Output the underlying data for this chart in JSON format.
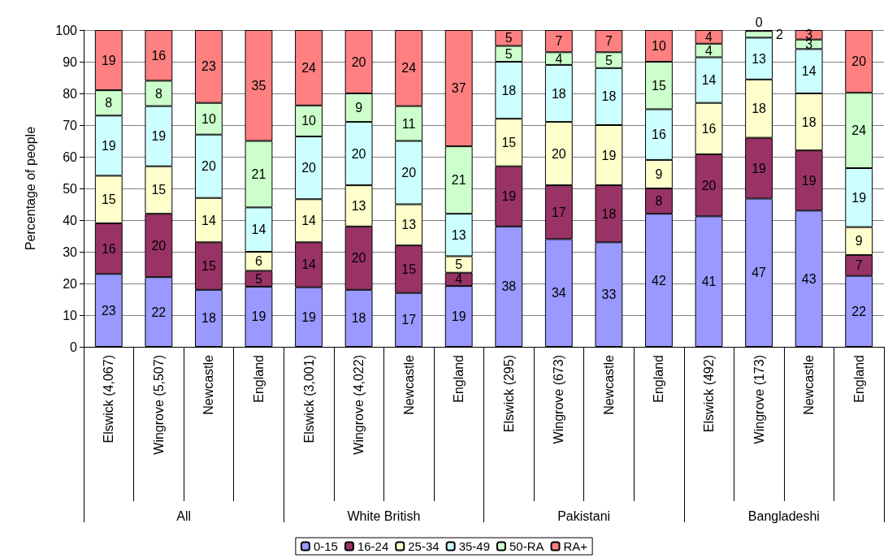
{
  "chart_data": {
    "type": "bar",
    "stacked": true,
    "ylabel": "Percentage of people",
    "categories": [
      "Elswick (4,067)",
      "Wingrove (5,507)",
      "Newcastle",
      "England",
      "Elswick (3,001)",
      "Wingrove (4,022)",
      "Newcastle",
      "England",
      "Elswick (295)",
      "Wingrove (673)",
      "Newcastle",
      "England",
      "Elswick (492)",
      "Wingrove (173)",
      "Newcastle",
      "England"
    ],
    "annotations": [
      "All",
      "White British",
      "Pakistani",
      "Bangladeshi"
    ],
    "series": [
      {
        "name": "0-15",
        "color": "#9999ff",
        "values": [
          23,
          22,
          18,
          19,
          18.8,
          18,
          17,
          19.2,
          38,
          34,
          33,
          42,
          41.2,
          46.8,
          43,
          22.4
        ],
        "value_labels": [
          "23",
          "22",
          "18",
          "19",
          "19",
          "18",
          "17",
          "19",
          "38",
          "34",
          "33",
          "42",
          "41",
          "47",
          "43",
          "22"
        ]
      },
      {
        "name": "16-24",
        "color": "#993366",
        "values": [
          16,
          20,
          15,
          5,
          14.2,
          20,
          15,
          4.2,
          19,
          17,
          18,
          8,
          19.6,
          19.2,
          19,
          6.6
        ],
        "value_labels": [
          "16",
          "20",
          "15",
          "5",
          "14",
          "20",
          "15",
          "4",
          "19",
          "17",
          "18",
          "8",
          "20",
          "19",
          "19",
          "7"
        ]
      },
      {
        "name": "25-34",
        "color": "#ffffcc",
        "values": [
          15,
          15,
          14,
          6,
          13.6,
          13,
          13,
          5.2,
          15,
          20,
          19,
          9,
          16.2,
          18.4,
          18,
          8.8
        ],
        "value_labels": [
          "15",
          "15",
          "14",
          "6",
          "14",
          "13",
          "13",
          "5",
          "15",
          "20",
          "19",
          "9",
          "16",
          "18",
          "18",
          "9"
        ]
      },
      {
        "name": "35-49",
        "color": "#ccffff",
        "values": [
          19,
          19,
          20,
          14,
          19.8,
          20,
          20,
          13.4,
          18,
          18,
          18,
          16,
          14.4,
          13.2,
          14,
          18.6
        ],
        "value_labels": [
          "19",
          "19",
          "20",
          "14",
          "20",
          "20",
          "20",
          "13",
          "18",
          "18",
          "18",
          "16",
          "14",
          "13",
          "14",
          "19"
        ]
      },
      {
        "name": "50-RA",
        "color": "#ccffcc",
        "values": [
          8,
          8,
          10,
          21,
          9.8,
          9,
          11,
          21.3,
          5,
          4,
          5,
          15,
          4.3,
          2.1,
          3,
          23.8
        ],
        "value_labels": [
          "8",
          "8",
          "10",
          "21",
          "10",
          "9",
          "11",
          "21",
          "5",
          "4",
          "5",
          "15",
          "4",
          "2",
          "3",
          "24"
        ]
      },
      {
        "name": "RA+",
        "color": "#ff8080",
        "values": [
          19,
          16,
          23,
          35,
          23.8,
          20,
          24,
          36.7,
          5,
          7,
          7,
          10,
          4.3,
          0.3,
          3,
          19.8
        ],
        "value_labels": [
          "19",
          "16",
          "23",
          "35",
          "24",
          "20",
          "24",
          "37",
          "5",
          "7",
          "7",
          "10",
          "4",
          "0",
          "3",
          "20"
        ]
      }
    ],
    "ylim": [
      0,
      100
    ],
    "yticks": [
      0,
      10,
      20,
      30,
      40,
      50,
      60,
      70,
      80,
      90,
      100
    ],
    "grid": "y",
    "legend": "bottom"
  }
}
